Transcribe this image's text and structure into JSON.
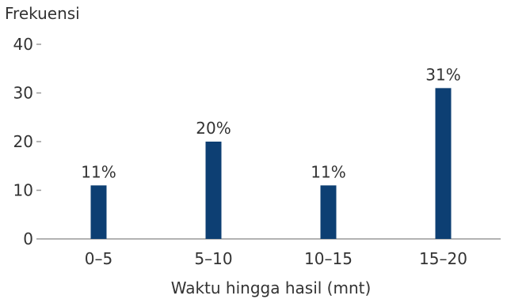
{
  "chart_data": {
    "type": "bar",
    "title": "",
    "ylabel": "Frekuensi",
    "xlabel": "Waktu hingga hasil (mnt)",
    "categories": [
      "0–5",
      "5–10",
      "10–15",
      "15–20"
    ],
    "values": [
      11,
      20,
      11,
      31
    ],
    "data_labels": [
      "11%",
      "20%",
      "11%",
      "31%"
    ],
    "ylim": [
      0,
      40
    ],
    "yticks": [
      0,
      10,
      20,
      30,
      40
    ],
    "grid": false,
    "bar_color": "#0d3f73",
    "axis_color": "#9a9a9a",
    "text_color": "#333333"
  }
}
